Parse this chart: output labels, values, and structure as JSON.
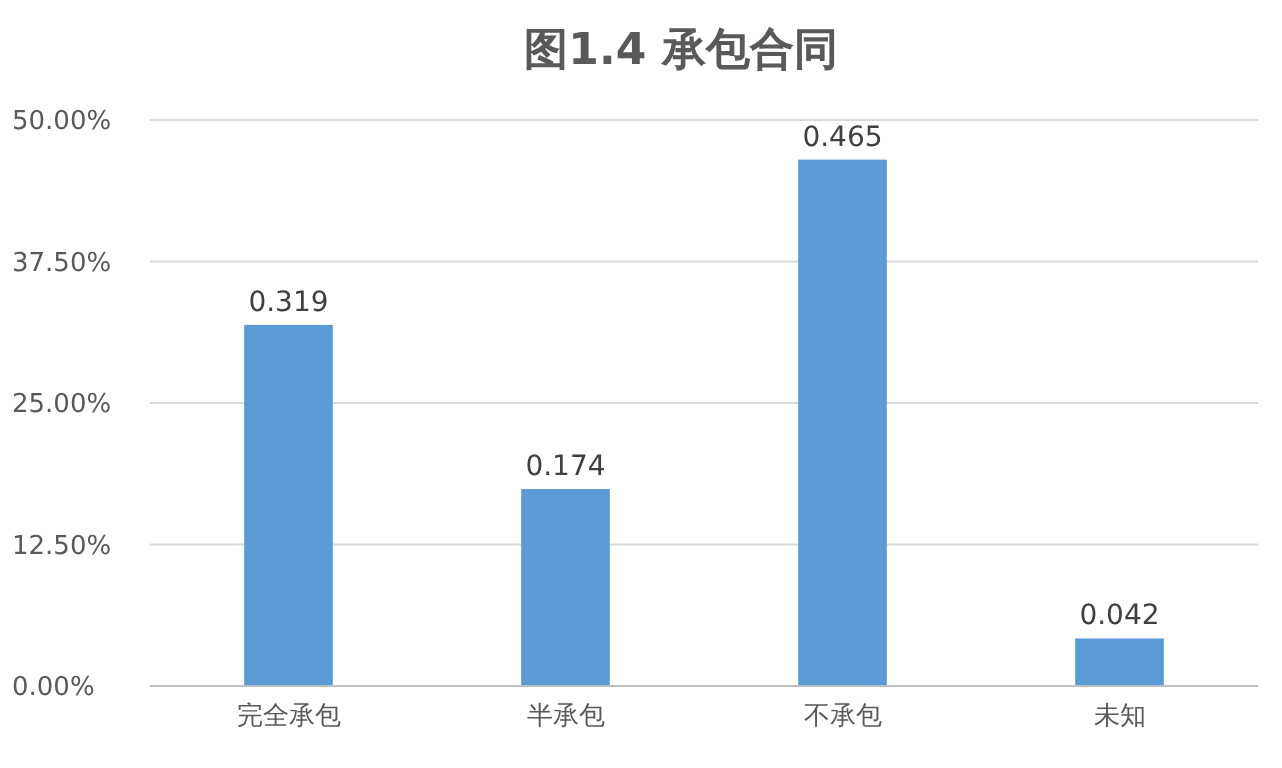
{
  "chart_data": {
    "type": "bar",
    "title": "图1.4 承包合同",
    "categories": [
      "完全承包",
      "半承包",
      "不承包",
      "未知"
    ],
    "values": [
      0.319,
      0.174,
      0.465,
      0.042
    ],
    "data_labels": true,
    "color": "#5b9bd5",
    "ylim": [
      0,
      0.5
    ],
    "yticks": [
      {
        "value": 0,
        "label": "0.00%"
      },
      {
        "value": 0.125,
        "label": "12.50%"
      },
      {
        "value": 0.25,
        "label": "25.00%"
      },
      {
        "value": 0.375,
        "label": "37.50%"
      },
      {
        "value": 0.5,
        "label": "50.00%"
      }
    ],
    "grid": "y"
  }
}
